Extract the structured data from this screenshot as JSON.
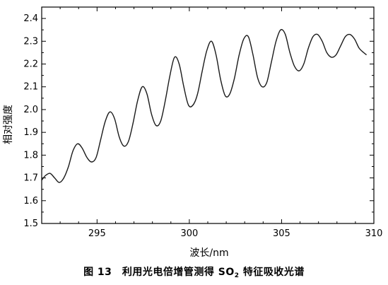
{
  "caption": {
    "prefix": "图 13　利用光电倍增管测得 SO",
    "subscript": "2",
    "suffix": " 特征吸收光谱"
  },
  "chart_data": {
    "type": "line",
    "title": "",
    "xlabel": "波长/nm",
    "ylabel": "相对强度",
    "xlim": [
      292,
      310
    ],
    "ylim": [
      1.5,
      2.45
    ],
    "x_ticks": [
      295,
      300,
      305,
      310
    ],
    "y_ticks": [
      1.5,
      1.6,
      1.7,
      1.8,
      1.9,
      2.0,
      2.1,
      2.2,
      2.3,
      2.4
    ],
    "x_tick_labels": [
      "295",
      "300",
      "305",
      "310"
    ],
    "y_tick_labels": [
      "1.5",
      "1.6",
      "1.7",
      "1.8",
      "1.9",
      "2.0",
      "2.1",
      "2.2",
      "2.3",
      "2.4"
    ],
    "grid": false,
    "series": [
      {
        "color": "#1a1a1a",
        "x": [
          292.0,
          292.2,
          292.45,
          292.7,
          292.95,
          293.2,
          293.45,
          293.7,
          293.95,
          294.2,
          294.45,
          294.7,
          294.95,
          295.2,
          295.45,
          295.7,
          295.95,
          296.2,
          296.45,
          296.7,
          296.95,
          297.2,
          297.45,
          297.7,
          297.95,
          298.2,
          298.45,
          298.7,
          298.95,
          299.2,
          299.45,
          299.7,
          299.95,
          300.2,
          300.45,
          300.7,
          300.95,
          301.2,
          301.45,
          301.7,
          301.95,
          302.2,
          302.45,
          302.7,
          302.95,
          303.2,
          303.45,
          303.7,
          303.95,
          304.2,
          304.45,
          304.7,
          304.95,
          305.2,
          305.45,
          305.7,
          305.95,
          306.2,
          306.45,
          306.7,
          306.95,
          307.2,
          307.45,
          307.7,
          307.95,
          308.2,
          308.45,
          308.7,
          308.95,
          309.2,
          309.45,
          309.6
        ],
        "y": [
          1.69,
          1.71,
          1.72,
          1.7,
          1.68,
          1.7,
          1.75,
          1.82,
          1.85,
          1.83,
          1.79,
          1.77,
          1.79,
          1.87,
          1.95,
          1.99,
          1.96,
          1.88,
          1.84,
          1.86,
          1.94,
          2.04,
          2.1,
          2.07,
          1.98,
          1.93,
          1.95,
          2.04,
          2.15,
          2.23,
          2.2,
          2.1,
          2.02,
          2.02,
          2.07,
          2.17,
          2.26,
          2.3,
          2.24,
          2.13,
          2.06,
          2.07,
          2.14,
          2.24,
          2.31,
          2.32,
          2.24,
          2.14,
          2.1,
          2.12,
          2.21,
          2.3,
          2.35,
          2.33,
          2.25,
          2.19,
          2.17,
          2.2,
          2.27,
          2.32,
          2.33,
          2.3,
          2.25,
          2.23,
          2.24,
          2.28,
          2.32,
          2.33,
          2.31,
          2.27,
          2.25,
          2.24
        ]
      }
    ]
  }
}
